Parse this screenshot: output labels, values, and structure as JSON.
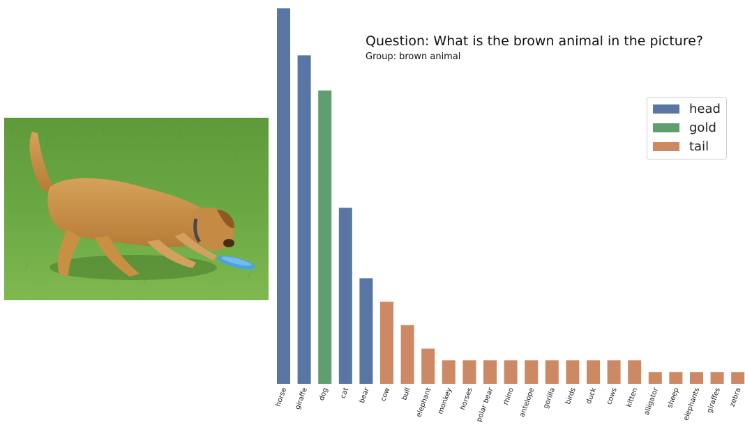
{
  "question": {
    "title": "Question: What is the brown animal in the picture?",
    "group": "Group: brown animal"
  },
  "colors": {
    "head": "#5875a4",
    "gold": "#5f9e6e",
    "tail": "#cc8963"
  },
  "legend": [
    {
      "label": "head",
      "color": "#5875a4"
    },
    {
      "label": "gold",
      "color": "#5f9e6e"
    },
    {
      "label": "tail",
      "color": "#cc8963"
    }
  ],
  "chart_data": {
    "type": "bar",
    "categories": [
      "horse",
      "giraffe",
      "dog",
      "cat",
      "bear",
      "cow",
      "bull",
      "elephant",
      "monkey",
      "horses",
      "polar bear",
      "rhino",
      "antelope",
      "gorilla",
      "birds",
      "duck",
      "cows",
      "kitten",
      "alligator",
      "sheep",
      "elephants",
      "giraffes",
      "zebra"
    ],
    "values": [
      32,
      28,
      25,
      15,
      9,
      7,
      5,
      3,
      2,
      2,
      2,
      2,
      2,
      2,
      2,
      2,
      2,
      2,
      1,
      1,
      1,
      1,
      1
    ],
    "groups": [
      "head",
      "head",
      "gold",
      "head",
      "head",
      "tail",
      "tail",
      "tail",
      "tail",
      "tail",
      "tail",
      "tail",
      "tail",
      "tail",
      "tail",
      "tail",
      "tail",
      "tail",
      "tail",
      "tail",
      "tail",
      "tail",
      "tail"
    ],
    "ylim": [
      0,
      32
    ],
    "grid": false,
    "legend_position": "upper-right"
  },
  "image": {
    "subject": "dog-with-frisbee-photo"
  }
}
